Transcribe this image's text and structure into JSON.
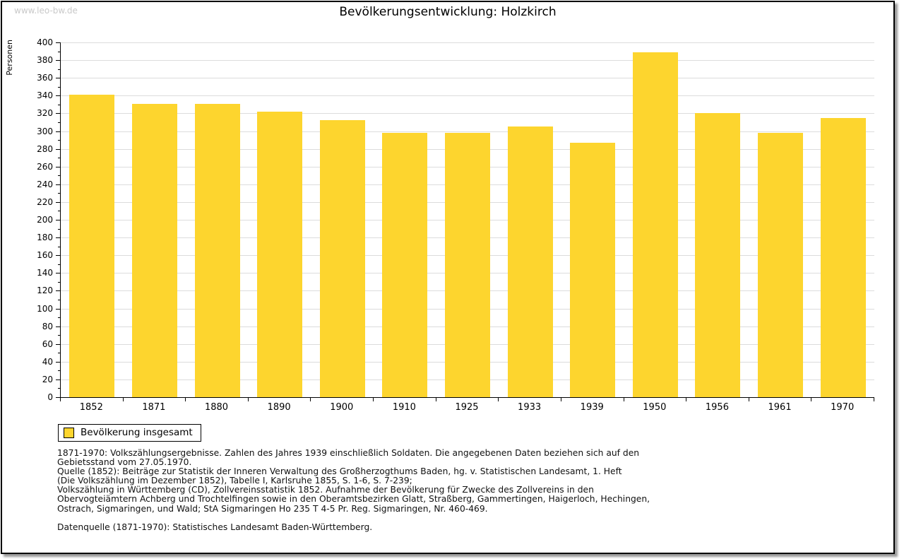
{
  "watermark": "www.leo-bw.de",
  "legend": {
    "label": "Bevölkerung insgesamt"
  },
  "colors": {
    "bar": "#FDD52E",
    "grid": "#dcdcdc",
    "axis": "#000000",
    "watermark": "#c9c9c9",
    "shadow": "#999999"
  },
  "chart_data": {
    "type": "bar",
    "title": "Bevölkerungsentwicklung: Holzkirch",
    "xlabel": "",
    "ylabel": "Personen",
    "categories": [
      "1852",
      "1871",
      "1880",
      "1890",
      "1900",
      "1910",
      "1925",
      "1933",
      "1939",
      "1950",
      "1956",
      "1961",
      "1970"
    ],
    "values": [
      341,
      331,
      331,
      322,
      312,
      298,
      298,
      305,
      287,
      389,
      320,
      298,
      315
    ],
    "series_name": "Bevölkerung insgesamt",
    "ylim": [
      0,
      400
    ],
    "ytick_step": 20,
    "yminor_step": 10,
    "grid": true,
    "bar_color": "#FDD52E",
    "legend_position": "bottom-left"
  },
  "notes": {
    "lines": [
      "1871-1970: Volkszählungsergebnisse. Zahlen des Jahres 1939 einschließlich Soldaten. Die angegebenen Daten beziehen sich auf den",
      "Gebietsstand vom 27.05.1970.",
      "Quelle (1852): Beiträge zur Statistik der Inneren Verwaltung des Großherzogthums Baden, hg. v. Statistischen Landesamt, 1. Heft",
      "(Die Volkszählung im Dezember 1852), Tabelle I, Karlsruhe 1855, S. 1-6, S. 7-239;",
      "Volkszählung in Württemberg (CD), Zollvereinsstatistik 1852. Aufnahme der Bevölkerung für Zwecke des Zollvereins in den",
      "Obervogteiämtern Achberg und Trochtelfingen sowie in den Oberamtsbezirken Glatt, Straßberg, Gammertingen, Haigerloch, Hechingen,",
      "Ostrach, Sigmaringen, und Wald; StA Sigmaringen Ho 235 T 4-5 Pr. Reg. Sigmaringen, Nr. 460-469."
    ],
    "footer": "Datenquelle (1871-1970): Statistisches Landesamt Baden-Württemberg."
  }
}
